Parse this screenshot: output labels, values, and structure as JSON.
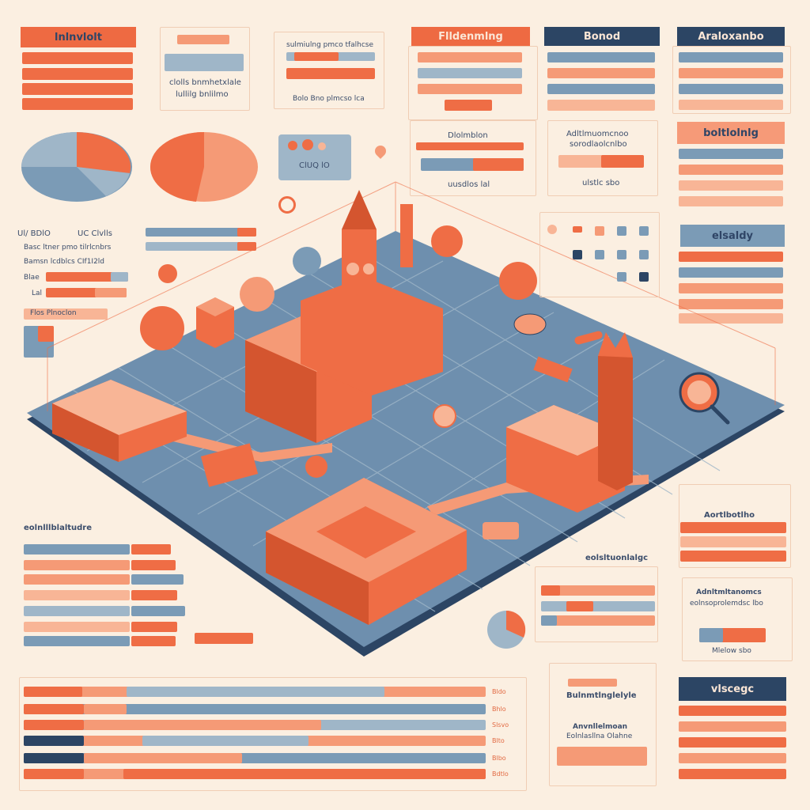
{
  "top_left": {
    "header": "lnlnvlolt"
  },
  "top_card": {
    "line1": "clolls bnmhetxlale",
    "line2": "lullilg bnlilmo"
  },
  "top_middle": {
    "title": "sulmiulng pmco tfalhcse",
    "footer": "Bolo Bno plmcso lca"
  },
  "col_a": {
    "header": "Flldenmlng",
    "box_title": "Dlolmblon",
    "box_footer": "uusdlos lal"
  },
  "col_b": {
    "header": "Bonod",
    "box_title": "Adltlmuomcnoo",
    "box_sub": "sorodlaolcnlbo",
    "box_footer": "ulstlc sbo"
  },
  "col_c": {
    "header1": "Araloxanbo",
    "header2": "boltlolnlg",
    "header3": "elsaldy",
    "header4": "Aortlbotlho",
    "card_title": "Adnltmltanomcs",
    "card_sub": "eolnsoprolemdsc lbo",
    "card_footer": "Mlelow sbo",
    "header5": "vlscegc"
  },
  "left_labels": {
    "a": "Ul/ BDlO",
    "b": "UC Clvlls",
    "c": "Basc ltner pmo tilrlcnbrs",
    "d": "Bamsn lcdblcs CIf1I2ld",
    "e": "Blae",
    "f": "Lal",
    "g": "Flos Plnoclon"
  },
  "bottom_left": {
    "title": "eolnlllblaltudre"
  },
  "bottom_middle": {
    "label": "eolsltuonlalgc"
  },
  "bottom_card": {
    "line1": "Bulnmtlnglelyle",
    "line2": "Anvnllelmoan",
    "line3": "Eolnlasllna Olahne"
  },
  "widget": {
    "label": "ClUQ lO"
  },
  "bottom_values": [
    "Bldo",
    "Bhlo",
    "Slsvo",
    "Blto",
    "Blbo",
    "Bdtlo"
  ],
  "icons": [
    "clock-tower-icon",
    "magnifier-icon",
    "map-pin-icon",
    "tree-icon",
    "gear-icon"
  ]
}
